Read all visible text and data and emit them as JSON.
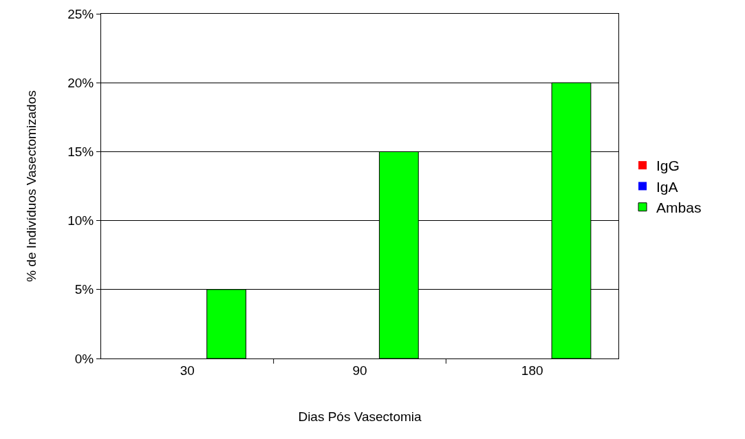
{
  "chart_data": {
    "type": "bar",
    "xlabel": "Dias Pós Vasectomia",
    "ylabel": "% de Indivíduos Vasectomizados",
    "categories": [
      "30",
      "90",
      "180"
    ],
    "series": [
      {
        "name": "IgG",
        "color": "#ff0000",
        "values": [
          0,
          0,
          0
        ]
      },
      {
        "name": "IgA",
        "color": "#0000ff",
        "values": [
          0,
          0,
          0
        ]
      },
      {
        "name": "Ambas",
        "color": "#00ff00",
        "values": [
          5,
          15,
          20
        ]
      }
    ],
    "ylim": [
      0,
      25
    ],
    "yticks": [
      {
        "value": 0,
        "label": "0%"
      },
      {
        "value": 5,
        "label": "5%"
      },
      {
        "value": 10,
        "label": "10%"
      },
      {
        "value": 15,
        "label": "15%"
      },
      {
        "value": 20,
        "label": "20%"
      },
      {
        "value": 25,
        "label": "25%"
      }
    ],
    "grid": "y",
    "legend": "right"
  }
}
